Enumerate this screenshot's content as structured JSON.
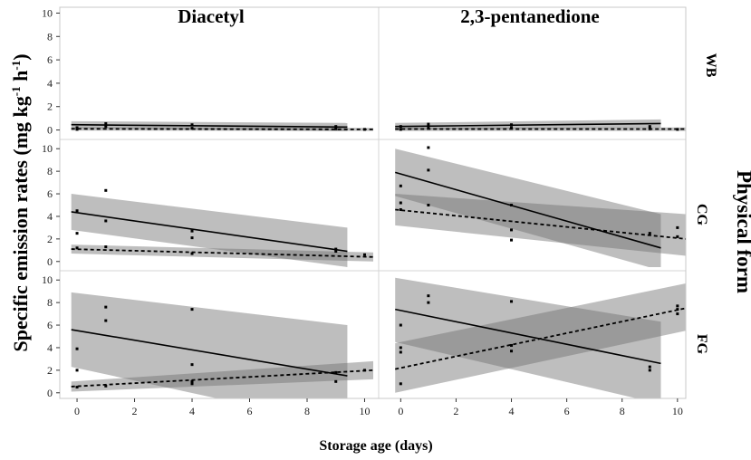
{
  "chart_data": {
    "type": "scatter",
    "y_axis_label": "Specific emission rates (mg kg",
    "y_axis_unit_sup1": "-1",
    "y_axis_unit_mid": " h",
    "y_axis_unit_sup2": "-1",
    "y_axis_unit_close": ")",
    "x_axis_label": "Storage age (days)",
    "row_group_label": "Physical form",
    "xlim": [
      -0.6,
      10.3
    ],
    "ylim": [
      -0.5,
      10.5
    ],
    "x_ticks": [
      0,
      2,
      4,
      6,
      8,
      10
    ],
    "y_ticks": [
      0,
      2,
      4,
      6,
      8,
      10
    ],
    "columns": [
      "Diacetyl",
      "2,3-pentanedione"
    ],
    "rows": [
      "WB",
      "CG",
      "FG"
    ],
    "panels": [
      {
        "compound": "Diacetyl",
        "form": "WB",
        "points": [
          [
            0,
            0.05
          ],
          [
            0,
            0.2
          ],
          [
            1,
            0.55
          ],
          [
            1,
            0.3
          ],
          [
            4,
            0.45
          ],
          [
            4,
            0.15
          ],
          [
            9,
            0.1
          ],
          [
            9,
            0.3
          ],
          [
            10,
            0.05
          ]
        ],
        "fits": [
          {
            "style": "solid",
            "x": [
              -0.2,
              9.4
            ],
            "y": [
              0.45,
              0.25
            ],
            "band_lower": [
              0.15,
              -0.1
            ],
            "band_upper": [
              0.75,
              0.6
            ]
          },
          {
            "style": "dashed",
            "x": [
              -0.2,
              10.3
            ],
            "y": [
              0.1,
              0.05
            ],
            "band_lower": [
              -0.05,
              -0.08
            ],
            "band_upper": [
              0.25,
              0.18
            ]
          }
        ]
      },
      {
        "compound": "2,3-pentanedione",
        "form": "WB",
        "points": [
          [
            0,
            0.05
          ],
          [
            0,
            0.3
          ],
          [
            1,
            0.5
          ],
          [
            1,
            0.25
          ],
          [
            4,
            0.45
          ],
          [
            4,
            0.2
          ],
          [
            9,
            0.3
          ],
          [
            9,
            0.1
          ],
          [
            10,
            0.05
          ]
        ],
        "fits": [
          {
            "style": "solid",
            "x": [
              -0.2,
              9.4
            ],
            "y": [
              0.3,
              0.55
            ],
            "band_lower": [
              0.0,
              0.2
            ],
            "band_upper": [
              0.6,
              0.9
            ]
          },
          {
            "style": "dashed",
            "x": [
              -0.2,
              10.3
            ],
            "y": [
              0.08,
              0.08
            ],
            "band_lower": [
              -0.08,
              -0.08
            ],
            "band_upper": [
              0.22,
              0.22
            ]
          }
        ]
      },
      {
        "compound": "Diacetyl",
        "form": "CG",
        "points": [
          [
            0,
            4.5
          ],
          [
            0,
            2.5
          ],
          [
            0,
            1.2
          ],
          [
            1,
            6.3
          ],
          [
            1,
            3.6
          ],
          [
            1,
            1.3
          ],
          [
            4,
            2.7
          ],
          [
            4,
            2.1
          ],
          [
            4,
            0.7
          ],
          [
            9,
            1.1
          ],
          [
            9,
            0.9
          ],
          [
            10,
            0.6
          ]
        ],
        "fits": [
          {
            "style": "solid",
            "x": [
              -0.2,
              9.4
            ],
            "y": [
              4.4,
              0.9
            ],
            "band_lower": [
              2.8,
              -0.5
            ],
            "band_upper": [
              6.0,
              3.0
            ]
          },
          {
            "style": "dashed",
            "x": [
              -0.2,
              10.3
            ],
            "y": [
              1.1,
              0.4
            ],
            "band_lower": [
              0.7,
              0.0
            ],
            "band_upper": [
              1.5,
              0.8
            ]
          }
        ]
      },
      {
        "compound": "2,3-pentanedione",
        "form": "CG",
        "points": [
          [
            0,
            6.7
          ],
          [
            0,
            5.2
          ],
          [
            0,
            4.6
          ],
          [
            1,
            10.1
          ],
          [
            1,
            8.1
          ],
          [
            1,
            5.0
          ],
          [
            4,
            5.0
          ],
          [
            4,
            2.8
          ],
          [
            4,
            1.9
          ],
          [
            9,
            2.5
          ],
          [
            10,
            3.0
          ],
          [
            10,
            2.2
          ]
        ],
        "fits": [
          {
            "style": "solid",
            "x": [
              -0.2,
              9.4
            ],
            "y": [
              7.9,
              1.2
            ],
            "band_lower": [
              5.8,
              -0.8
            ],
            "band_upper": [
              10.0,
              4.2
            ]
          },
          {
            "style": "dashed",
            "x": [
              -0.2,
              10.3
            ],
            "y": [
              4.6,
              2.0
            ],
            "band_lower": [
              3.2,
              0.5
            ],
            "band_upper": [
              6.0,
              4.2
            ]
          }
        ]
      },
      {
        "compound": "Diacetyl",
        "form": "FG",
        "points": [
          [
            0,
            3.9
          ],
          [
            0,
            2.0
          ],
          [
            0,
            0.5
          ],
          [
            1,
            7.6
          ],
          [
            1,
            6.4
          ],
          [
            1,
            0.6
          ],
          [
            4,
            7.4
          ],
          [
            4,
            2.5
          ],
          [
            4,
            1.0
          ],
          [
            4,
            0.8
          ],
          [
            9,
            1.0
          ],
          [
            9,
            1.8
          ],
          [
            10,
            2.0
          ]
        ],
        "fits": [
          {
            "style": "solid",
            "x": [
              -0.2,
              9.4
            ],
            "y": [
              5.6,
              1.5
            ],
            "band_lower": [
              2.3,
              -3.0
            ],
            "band_upper": [
              8.9,
              6.0
            ]
          },
          {
            "style": "dashed",
            "x": [
              -0.2,
              10.3
            ],
            "y": [
              0.55,
              2.0
            ],
            "band_lower": [
              0.1,
              1.2
            ],
            "band_upper": [
              1.0,
              2.8
            ]
          }
        ]
      },
      {
        "compound": "2,3-pentanedione",
        "form": "FG",
        "points": [
          [
            0,
            6.0
          ],
          [
            0,
            4.0
          ],
          [
            0,
            3.6
          ],
          [
            0,
            0.8
          ],
          [
            1,
            8.6
          ],
          [
            1,
            8.0
          ],
          [
            4,
            8.1
          ],
          [
            4,
            4.2
          ],
          [
            4,
            3.7
          ],
          [
            9,
            2.3
          ],
          [
            9,
            2.0
          ],
          [
            10,
            7.7
          ],
          [
            10,
            7.4
          ],
          [
            10,
            7.0
          ]
        ],
        "fits": [
          {
            "style": "solid",
            "x": [
              -0.2,
              9.4
            ],
            "y": [
              7.4,
              2.6
            ],
            "band_lower": [
              4.5,
              -1.0
            ],
            "band_upper": [
              10.2,
              6.3
            ]
          },
          {
            "style": "dashed",
            "x": [
              -0.2,
              10.3
            ],
            "y": [
              2.1,
              7.5
            ],
            "band_lower": [
              0.0,
              5.5
            ],
            "band_upper": [
              4.4,
              9.7
            ]
          }
        ]
      }
    ]
  }
}
